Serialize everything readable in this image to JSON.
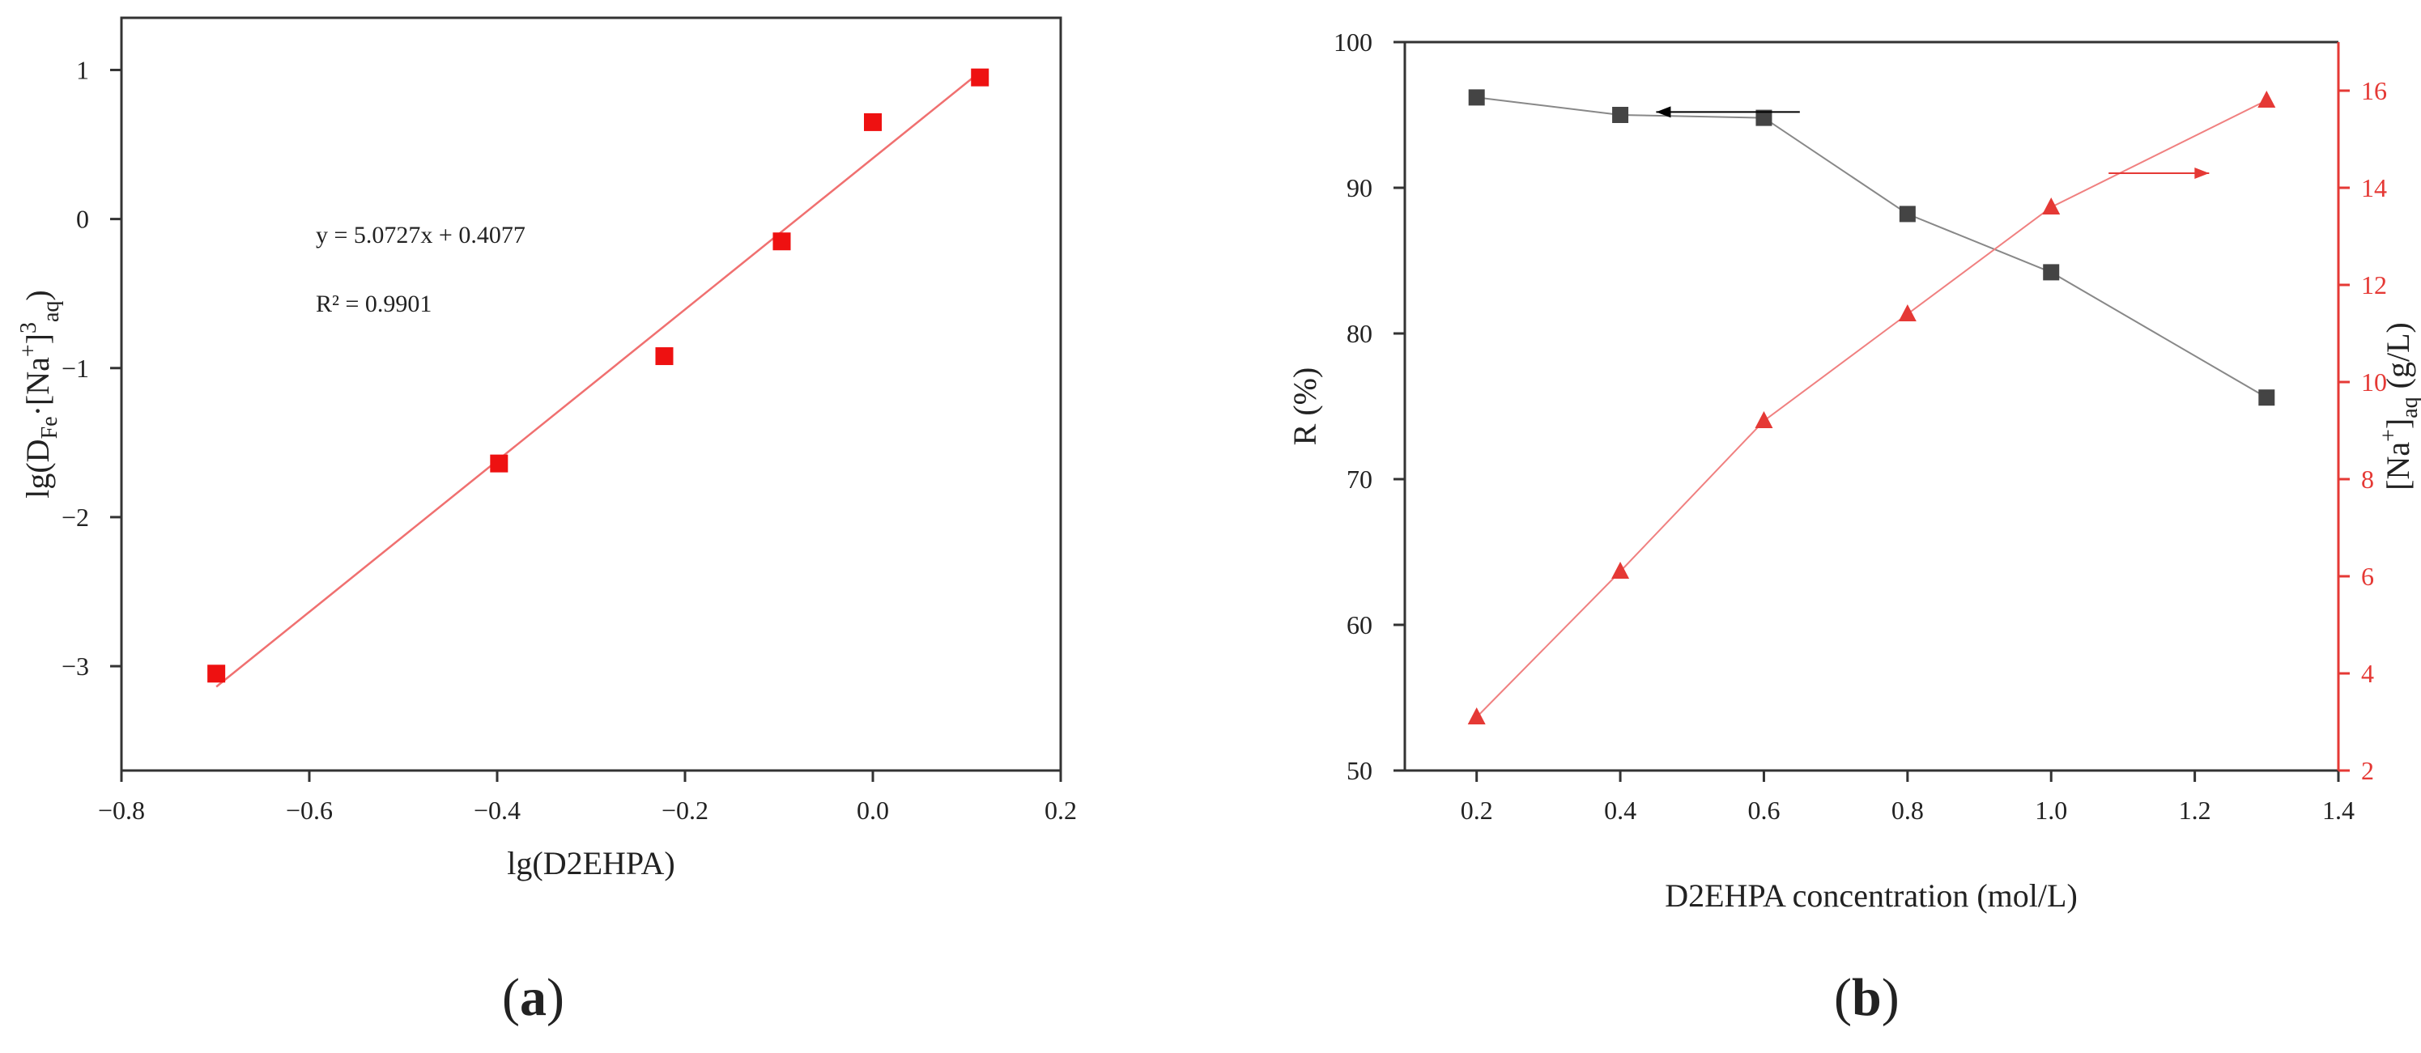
{
  "panels": [
    {
      "label": "a",
      "open": "(",
      "close": ")"
    },
    {
      "label": "b",
      "open": "(",
      "close": ")"
    }
  ],
  "chart_data": [
    {
      "type": "scatter",
      "panel": "a",
      "xlabel": "lg(D2EHPA)",
      "ylabel_parts": {
        "a": "lg(D",
        "sub1": "Fe",
        "b": "·[Na",
        "sup1": "+",
        "c": "]",
        "sup2": "3",
        "sub2": "aq",
        "d": ")"
      },
      "xlim": [
        -0.8,
        0.2
      ],
      "ylim": [
        -3.7,
        1.35
      ],
      "xticks": [
        -0.8,
        -0.6,
        -0.4,
        -0.2,
        0.0,
        0.2
      ],
      "xtick_labels": [
        "−0.8",
        "−0.6",
        "−0.4",
        "−0.2",
        "0.0",
        "0.2"
      ],
      "yticks": [
        -3,
        -2,
        -1,
        0,
        1
      ],
      "ytick_labels": [
        "−3",
        "−2",
        "−1",
        "0",
        "1"
      ],
      "grid": false,
      "points": [
        {
          "x": -0.699,
          "y": -3.05
        },
        {
          "x": -0.398,
          "y": -1.64
        },
        {
          "x": -0.222,
          "y": -0.92
        },
        {
          "x": -0.097,
          "y": -0.15
        },
        {
          "x": 0.0,
          "y": 0.65
        },
        {
          "x": 0.114,
          "y": 0.95
        }
      ],
      "fit": {
        "slope": 5.0727,
        "intercept": 0.4077,
        "x_range": [
          -0.699,
          0.114
        ]
      },
      "annotations": [
        "y = 5.0727x + 0.4077",
        "R² = 0.9901"
      ],
      "colors": {
        "points": "#ee1111",
        "fit": "#f07070",
        "axes": "#333333"
      }
    },
    {
      "type": "line",
      "panel": "b",
      "xlabel": "D2EHPA concentration (mol/L)",
      "ylabel_left": "R (%)",
      "ylabel_right_parts": {
        "a": "[Na",
        "sup": "+",
        "b": "]",
        "sub": "aq",
        "c": " (g/L)"
      },
      "xlim": [
        0.1,
        1.4
      ],
      "xticks": [
        0.2,
        0.4,
        0.6,
        0.8,
        1.0,
        1.2,
        1.4
      ],
      "xtick_labels": [
        "0.2",
        "0.4",
        "0.6",
        "0.8",
        "1.0",
        "1.2",
        "1.4"
      ],
      "ylim_left": [
        50,
        100
      ],
      "yticks_left": [
        50,
        60,
        70,
        80,
        90,
        100
      ],
      "ylim_right": [
        2,
        17
      ],
      "yticks_right": [
        2,
        4,
        6,
        8,
        10,
        12,
        14,
        16
      ],
      "grid": false,
      "x": [
        0.2,
        0.4,
        0.6,
        0.8,
        1.0,
        1.3
      ],
      "series": [
        {
          "axis": "left",
          "marker": "square",
          "color": "#444444",
          "line_color": "#888888",
          "values": [
            96.2,
            95.0,
            94.8,
            88.2,
            84.2,
            75.6
          ]
        },
        {
          "axis": "right",
          "marker": "triangle",
          "color": "#e53935",
          "line_color": "#f08080",
          "values": [
            3.1,
            6.1,
            9.2,
            11.4,
            13.6,
            15.8
          ]
        }
      ],
      "arrows": [
        {
          "axis": "left",
          "from": [
            0.65,
            95.2
          ],
          "to": [
            0.45,
            95.2
          ],
          "color": "#000000"
        },
        {
          "axis": "right",
          "from": [
            1.08,
            14.3
          ],
          "to": [
            1.22,
            14.3
          ],
          "color": "#e53935"
        }
      ],
      "colors": {
        "axes_left": "#333333",
        "axes_right": "#e53935"
      }
    }
  ]
}
